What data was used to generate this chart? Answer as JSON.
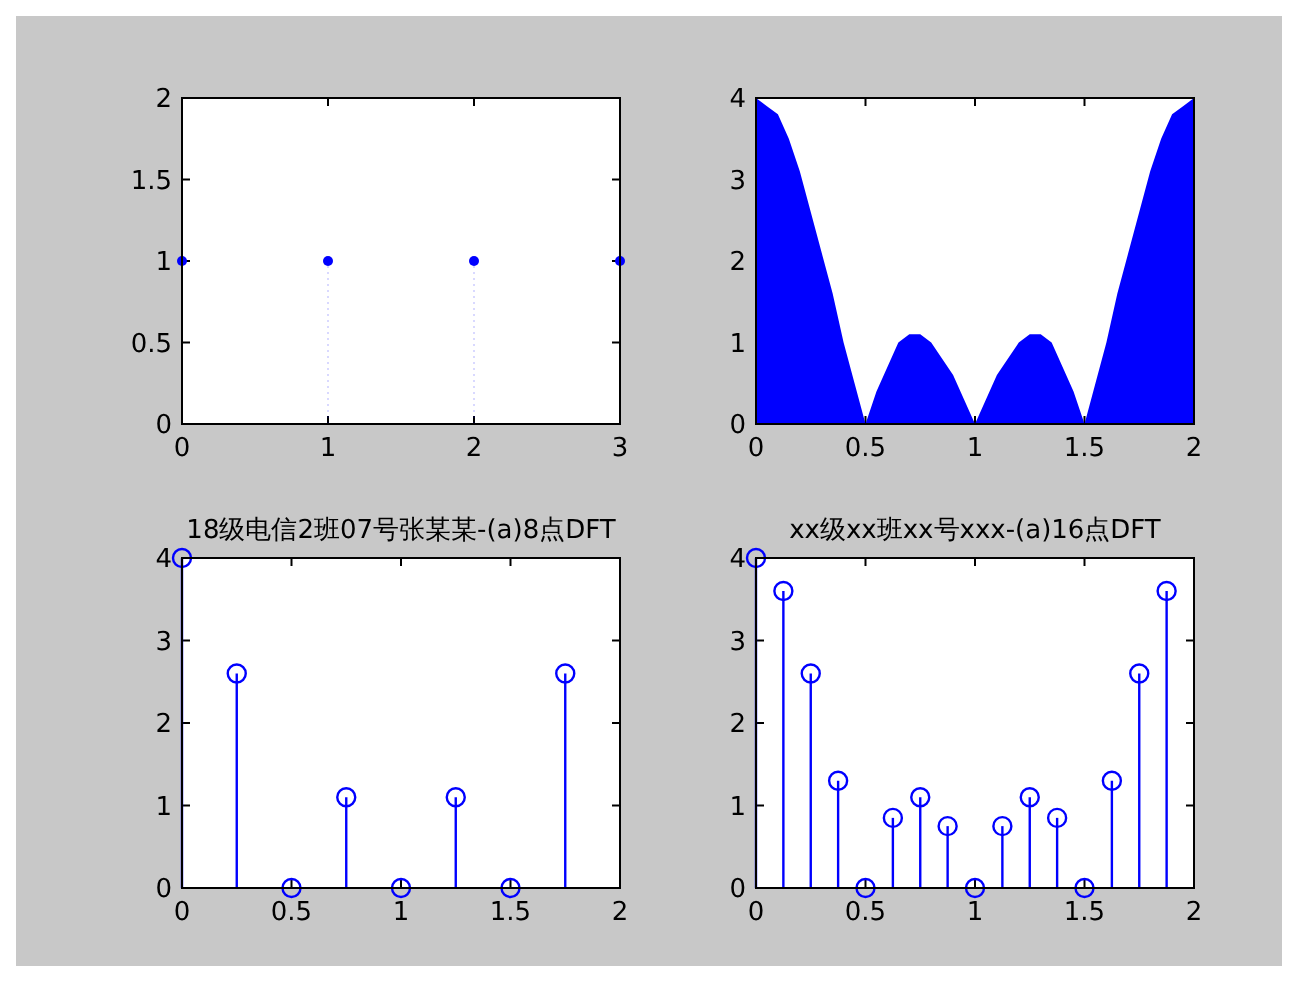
{
  "chart_data": [
    {
      "type": "lollipop",
      "x": [
        0,
        1,
        2,
        3
      ],
      "series": [
        {
          "color": "#0000ff",
          "values": [
            1,
            1,
            1,
            1
          ]
        }
      ],
      "marker": "circle",
      "line_style": "dotted",
      "xlim": [
        0,
        3
      ],
      "xticks": [
        0,
        1,
        2,
        3
      ],
      "ylim": [
        0,
        2
      ],
      "yticks": [
        0,
        0.5,
        1,
        1.5,
        2
      ]
    },
    {
      "type": "area",
      "x": [
        0,
        0.05,
        0.1,
        0.15,
        0.2,
        0.25,
        0.3,
        0.35,
        0.4,
        0.45,
        0.5,
        0.55,
        0.6,
        0.65,
        0.7,
        0.75,
        0.8,
        0.85,
        0.9,
        0.95,
        1,
        1.05,
        1.1,
        1.15,
        1.2,
        1.25,
        1.3,
        1.35,
        1.4,
        1.45,
        1.5,
        1.55,
        1.6,
        1.65,
        1.7,
        1.75,
        1.8,
        1.85,
        1.9,
        1.95,
        2
      ],
      "series": [
        {
          "color": "#0000ff",
          "values": [
            4,
            3.9,
            3.8,
            3.5,
            3.1,
            2.6,
            2.1,
            1.6,
            1,
            0.5,
            0,
            0.4,
            0.7,
            1,
            1.1,
            1.1,
            1,
            0.8,
            0.6,
            0.3,
            0,
            0.3,
            0.6,
            0.8,
            1,
            1.1,
            1.1,
            1,
            0.7,
            0.4,
            0,
            0.5,
            1,
            1.6,
            2.1,
            2.6,
            3.1,
            3.5,
            3.8,
            3.9,
            4
          ]
        }
      ],
      "xlim": [
        0,
        2
      ],
      "xticks": [
        0,
        0.5,
        1,
        1.5,
        2
      ],
      "ylim": [
        0,
        4
      ],
      "yticks": [
        0,
        1,
        2,
        3,
        4
      ]
    },
    {
      "type": "lollipop",
      "title": "18级电信2班07号张某某-(a)8点DFT",
      "x": [
        0,
        0.25,
        0.5,
        0.75,
        1,
        1.25,
        1.5,
        1.75
      ],
      "series": [
        {
          "color": "#0000ff",
          "values": [
            4,
            2.6,
            0,
            1.1,
            0,
            1.1,
            0,
            2.6
          ]
        }
      ],
      "marker": "circle",
      "line_style": "solid",
      "xlim": [
        0,
        2
      ],
      "xticks": [
        0,
        0.5,
        1,
        1.5,
        2
      ],
      "ylim": [
        0,
        4
      ],
      "yticks": [
        0,
        1,
        2,
        3,
        4
      ]
    },
    {
      "type": "lollipop",
      "title": "xx级xx班xx号xxx-(a)16点DFT",
      "x": [
        0,
        0.125,
        0.25,
        0.375,
        0.5,
        0.625,
        0.75,
        0.875,
        1,
        1.125,
        1.25,
        1.375,
        1.5,
        1.625,
        1.75,
        1.875
      ],
      "series": [
        {
          "color": "#0000ff",
          "values": [
            4,
            3.6,
            2.6,
            1.3,
            0,
            0.85,
            1.1,
            0.75,
            0,
            0.75,
            1.1,
            0.85,
            0,
            1.3,
            2.6,
            3.6
          ]
        }
      ],
      "marker": "circle",
      "line_style": "solid",
      "xlim": [
        0,
        2
      ],
      "xticks": [
        0,
        0.5,
        1,
        1.5,
        2
      ],
      "ylim": [
        0,
        4
      ],
      "yticks": [
        0,
        1,
        2,
        3,
        4
      ]
    }
  ]
}
